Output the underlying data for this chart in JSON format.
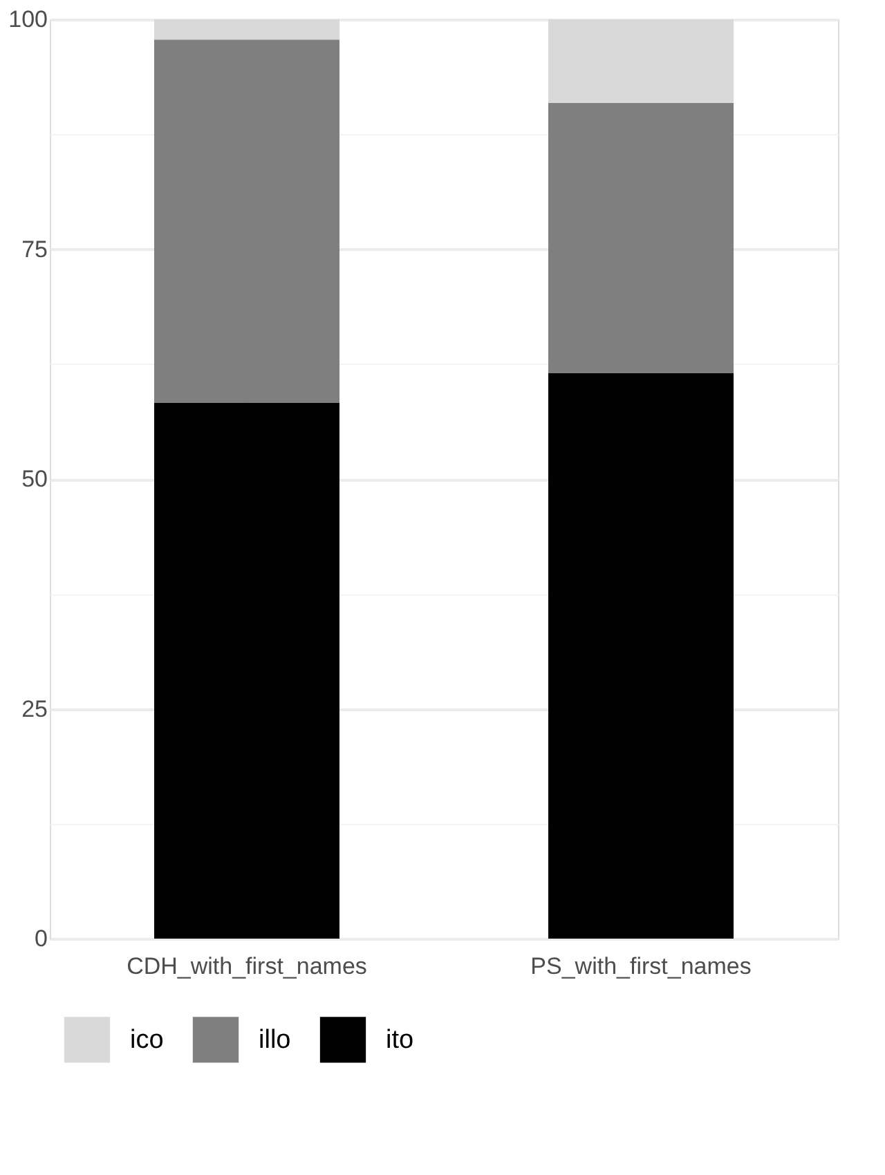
{
  "chart_data": {
    "type": "bar",
    "stacked": true,
    "categories": [
      "CDH_with_first_names",
      "PS_with_first_names"
    ],
    "series": [
      {
        "name": "ito",
        "color": "#000000",
        "values": [
          58.3,
          61.5
        ]
      },
      {
        "name": "illo",
        "color": "#7f7f7f",
        "values": [
          39.5,
          29.4
        ]
      },
      {
        "name": "ico",
        "color": "#d9d9d9",
        "values": [
          2.2,
          9.1
        ]
      }
    ],
    "ylim": [
      0,
      100
    ],
    "yticks": [
      0,
      {
        "value": 12.5,
        "label": null
      },
      25,
      {
        "value": 37.5,
        "label": null
      },
      50,
      {
        "value": 62.5,
        "label": null
      },
      75,
      {
        "value": 87.5,
        "label": null
      },
      100
    ],
    "grid": true,
    "legend": "bottom"
  }
}
